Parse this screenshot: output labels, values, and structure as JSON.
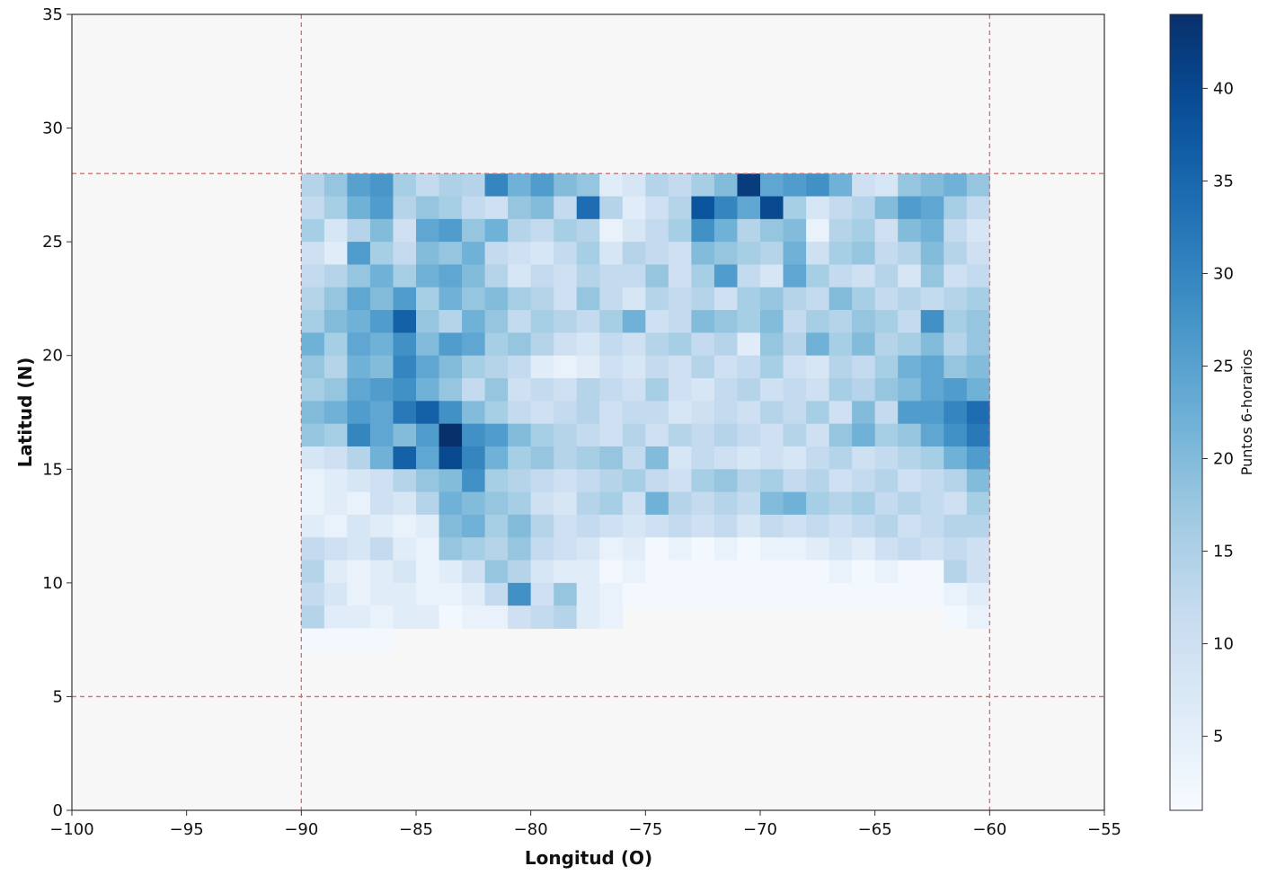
{
  "chart_data": {
    "type": "heatmap",
    "title": "",
    "xlabel": "Longitud (O)",
    "ylabel": "Latitud (N)",
    "xlim": [
      -100,
      -55
    ],
    "ylim": [
      0,
      35
    ],
    "xticks": [
      -100,
      -95,
      -90,
      -85,
      -80,
      -75,
      -70,
      -65,
      -60,
      -55
    ],
    "xtick_labels": [
      "−100",
      "−95",
      "−90",
      "−85",
      "−80",
      "−75",
      "−70",
      "−65",
      "−60",
      "−55"
    ],
    "yticks": [
      0,
      5,
      10,
      15,
      20,
      25,
      30,
      35
    ],
    "ytick_labels": [
      "0",
      "5",
      "10",
      "15",
      "20",
      "25",
      "30",
      "35"
    ],
    "grid": false,
    "cell_size_deg": 1,
    "rows_lat_start": [
      27,
      26,
      25,
      24,
      23,
      22,
      21,
      20,
      19,
      18,
      17,
      16,
      15,
      14,
      13,
      12,
      11,
      10,
      9,
      8
    ],
    "cols_lon_start": -90,
    "values": [
      [
        14,
        18,
        25,
        27,
        16,
        12,
        15,
        14,
        30,
        22,
        26,
        20,
        18,
        6,
        8,
        14,
        12,
        16,
        20,
        42,
        24,
        26,
        28,
        22,
        10,
        8,
        18,
        20,
        22,
        18
      ],
      [
        12,
        16,
        22,
        26,
        14,
        18,
        16,
        12,
        10,
        18,
        20,
        12,
        34,
        14,
        6,
        10,
        14,
        38,
        30,
        24,
        40,
        16,
        8,
        12,
        14,
        20,
        26,
        24,
        16,
        12
      ],
      [
        16,
        8,
        14,
        20,
        10,
        24,
        26,
        18,
        22,
        14,
        12,
        16,
        14,
        4,
        8,
        12,
        16,
        28,
        22,
        14,
        18,
        20,
        4,
        14,
        16,
        10,
        20,
        22,
        12,
        8
      ],
      [
        10,
        6,
        26,
        16,
        12,
        20,
        18,
        22,
        12,
        10,
        8,
        12,
        16,
        8,
        14,
        12,
        10,
        20,
        18,
        16,
        14,
        22,
        10,
        16,
        18,
        12,
        14,
        20,
        14,
        10
      ],
      [
        12,
        14,
        18,
        22,
        16,
        22,
        24,
        20,
        14,
        8,
        12,
        10,
        14,
        12,
        12,
        18,
        10,
        16,
        26,
        12,
        8,
        24,
        16,
        12,
        10,
        14,
        8,
        18,
        10,
        12
      ],
      [
        14,
        18,
        24,
        20,
        26,
        16,
        22,
        18,
        20,
        16,
        14,
        10,
        18,
        12,
        8,
        14,
        12,
        14,
        10,
        16,
        18,
        14,
        12,
        20,
        16,
        12,
        14,
        12,
        14,
        16
      ],
      [
        16,
        20,
        22,
        26,
        36,
        18,
        14,
        22,
        18,
        12,
        16,
        14,
        12,
        16,
        22,
        10,
        12,
        20,
        18,
        16,
        20,
        12,
        16,
        14,
        18,
        16,
        12,
        28,
        16,
        18
      ],
      [
        22,
        16,
        24,
        22,
        28,
        20,
        26,
        24,
        16,
        18,
        14,
        10,
        8,
        12,
        10,
        14,
        16,
        12,
        14,
        6,
        18,
        14,
        22,
        16,
        20,
        14,
        16,
        20,
        14,
        18
      ],
      [
        18,
        14,
        22,
        20,
        30,
        24,
        20,
        16,
        14,
        12,
        6,
        4,
        6,
        10,
        8,
        12,
        10,
        14,
        10,
        12,
        16,
        10,
        8,
        14,
        12,
        16,
        22,
        24,
        18,
        20
      ],
      [
        16,
        18,
        24,
        26,
        28,
        22,
        18,
        12,
        18,
        10,
        12,
        10,
        14,
        12,
        10,
        16,
        10,
        8,
        12,
        14,
        10,
        12,
        10,
        16,
        14,
        18,
        20,
        24,
        26,
        22
      ],
      [
        20,
        22,
        26,
        24,
        32,
        36,
        28,
        20,
        16,
        12,
        10,
        12,
        14,
        10,
        12,
        12,
        8,
        10,
        12,
        10,
        14,
        12,
        16,
        10,
        20,
        12,
        26,
        26,
        30,
        34
      ],
      [
        18,
        16,
        30,
        24,
        20,
        26,
        44,
        28,
        26,
        20,
        16,
        14,
        12,
        10,
        14,
        10,
        14,
        12,
        14,
        12,
        10,
        14,
        10,
        18,
        22,
        16,
        18,
        24,
        28,
        32
      ],
      [
        8,
        10,
        14,
        22,
        36,
        24,
        40,
        30,
        22,
        16,
        18,
        14,
        16,
        18,
        12,
        20,
        8,
        12,
        10,
        8,
        10,
        8,
        12,
        14,
        10,
        12,
        14,
        16,
        22,
        26
      ],
      [
        4,
        6,
        8,
        10,
        14,
        18,
        20,
        28,
        16,
        14,
        12,
        10,
        12,
        14,
        16,
        12,
        10,
        16,
        18,
        14,
        16,
        12,
        14,
        10,
        12,
        14,
        10,
        12,
        14,
        20
      ],
      [
        4,
        6,
        4,
        10,
        8,
        14,
        22,
        20,
        18,
        16,
        10,
        8,
        14,
        16,
        10,
        22,
        14,
        12,
        14,
        12,
        20,
        22,
        16,
        14,
        16,
        12,
        14,
        12,
        10,
        16
      ],
      [
        6,
        4,
        8,
        6,
        4,
        6,
        20,
        22,
        16,
        20,
        14,
        10,
        12,
        10,
        8,
        10,
        12,
        10,
        12,
        8,
        12,
        10,
        12,
        10,
        12,
        14,
        10,
        12,
        14,
        14
      ],
      [
        12,
        10,
        8,
        12,
        6,
        4,
        18,
        16,
        14,
        18,
        12,
        10,
        8,
        4,
        6,
        2,
        4,
        2,
        4,
        2,
        4,
        4,
        6,
        8,
        6,
        10,
        12,
        10,
        12,
        10
      ],
      [
        14,
        6,
        4,
        6,
        8,
        4,
        6,
        10,
        18,
        14,
        8,
        6,
        6,
        2,
        4,
        2,
        2,
        2,
        2,
        2,
        2,
        2,
        2,
        4,
        2,
        4,
        2,
        2,
        14,
        10
      ],
      [
        12,
        6,
        4,
        4,
        6,
        4,
        4,
        6,
        12,
        28,
        10,
        18,
        6,
        4,
        2,
        2,
        2,
        2,
        2,
        2,
        2,
        2,
        2,
        2,
        2,
        2,
        2,
        2,
        4,
        6
      ],
      [
        10,
        8,
        6,
        6,
        4,
        4,
        4,
        4,
        4,
        10,
        12,
        14,
        6,
        4,
        0,
        0,
        0,
        0,
        0,
        0,
        0,
        0,
        0,
        0,
        0,
        0,
        0,
        0,
        2,
        4
      ]
    ],
    "extra_cells": [
      {
        "lat": 9,
        "lon": -90,
        "value": 12
      },
      {
        "lat": 9,
        "lon": -89,
        "value": 8
      },
      {
        "lat": 9,
        "lon": -88,
        "value": 4
      },
      {
        "lat": 9,
        "lon": -87,
        "value": 6
      },
      {
        "lat": 8,
        "lon": -90,
        "value": 14
      },
      {
        "lat": 8,
        "lon": -89,
        "value": 6
      },
      {
        "lat": 8,
        "lon": -88,
        "value": 6
      },
      {
        "lat": 8,
        "lon": -87,
        "value": 4
      },
      {
        "lat": 8,
        "lon": -86,
        "value": 6
      },
      {
        "lat": 8,
        "lon": -85,
        "value": 6
      },
      {
        "lat": 8,
        "lon": -84,
        "value": 2
      },
      {
        "lat": 7,
        "lon": -90,
        "value": 2
      },
      {
        "lat": 7,
        "lon": -89,
        "value": 2
      },
      {
        "lat": 7,
        "lon": -88,
        "value": 2
      },
      {
        "lat": 7,
        "lon": -87,
        "value": 2
      }
    ],
    "reference_lines": {
      "color": "#e8666a",
      "style": "dashed",
      "vertical_x": [
        -90,
        -60
      ],
      "horizontal_y": [
        28,
        5
      ]
    },
    "colorbar": {
      "label": "Puntos 6-horarios",
      "range": [
        1,
        44
      ],
      "ticks": [
        5,
        10,
        15,
        20,
        25,
        30,
        35,
        40
      ],
      "tick_labels": [
        "5",
        "10",
        "15",
        "20",
        "25",
        "30",
        "35",
        "40"
      ],
      "cmap": "Blues"
    },
    "colors": {
      "background": "#f7f7f7",
      "cmap_low": "#f7fbff",
      "cmap_high": "#08306b"
    }
  }
}
